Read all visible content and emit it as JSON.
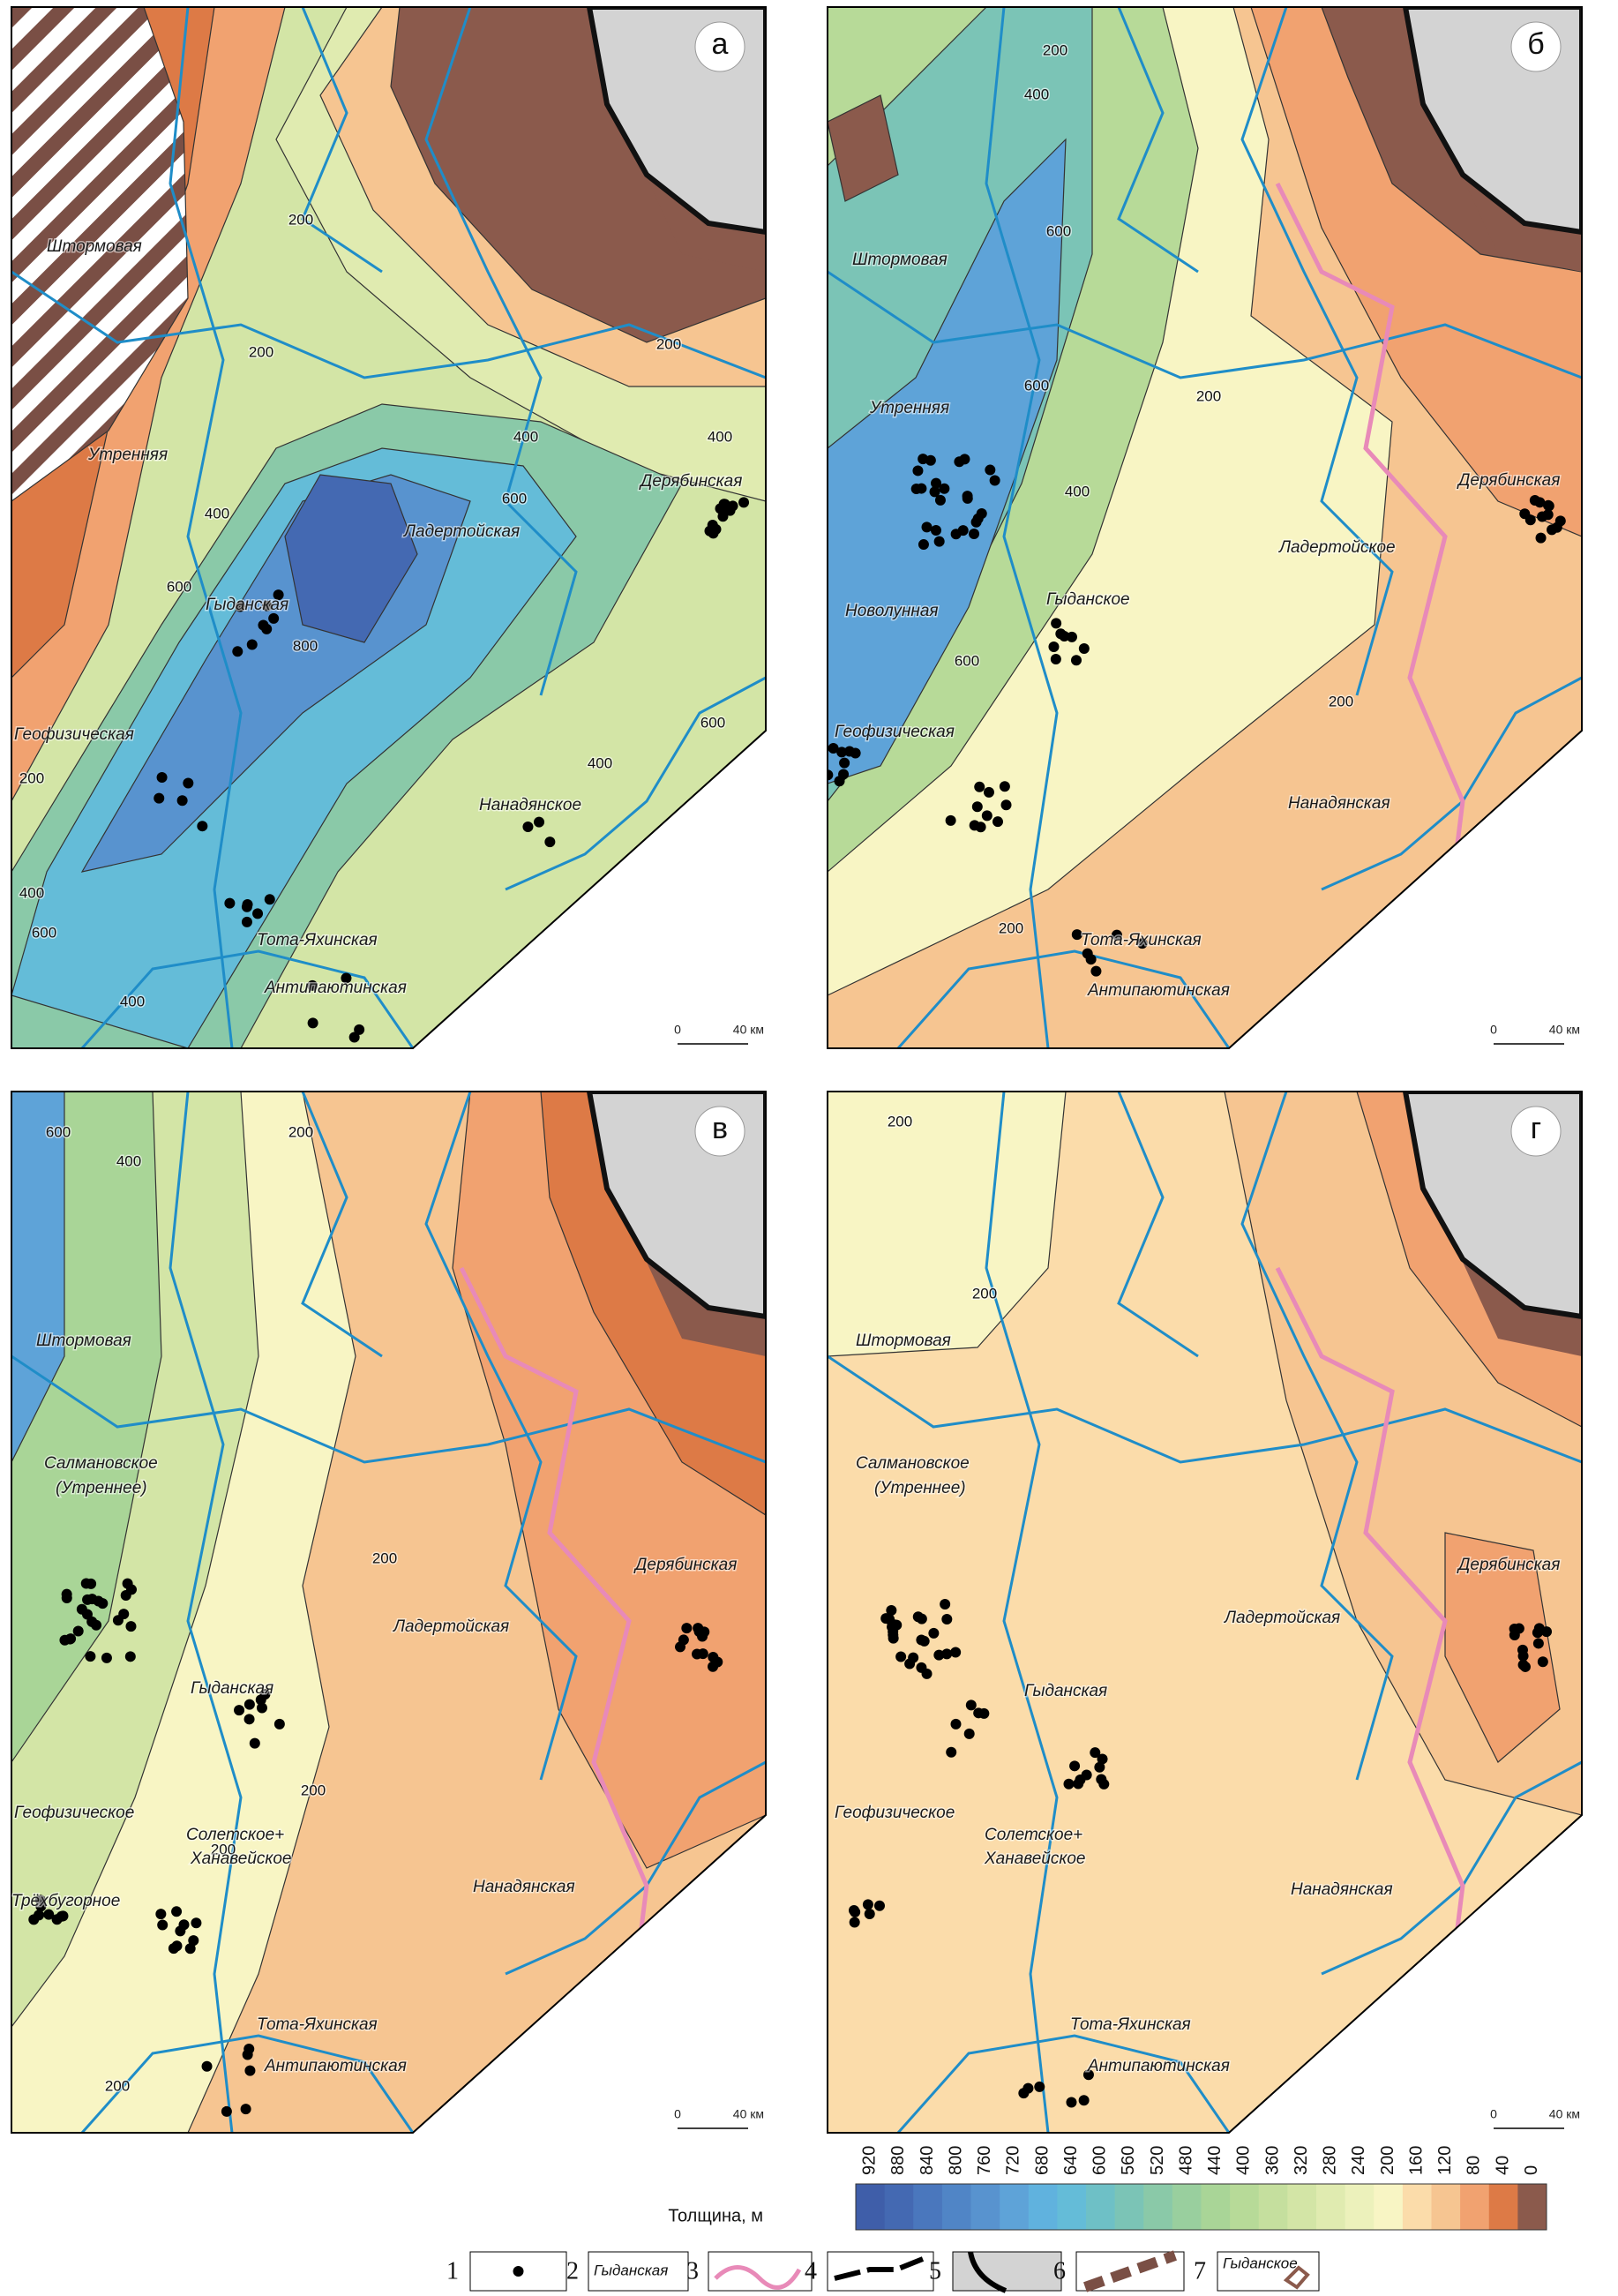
{
  "panels": [
    {
      "letter": "а",
      "labels": [
        "Штормовая",
        "Утренняя",
        "Дерябинская",
        "Ладертойская",
        "Гыданская",
        "Геофизическая",
        "Нанадянское",
        "Тота-Яхинская",
        "Антипаютинская"
      ],
      "contour_labels": [
        200,
        200,
        200,
        400,
        400,
        600,
        400,
        600,
        800,
        600,
        400,
        200,
        400,
        600,
        400
      ]
    },
    {
      "letter": "б",
      "labels": [
        "Штормовая",
        "Утренняя",
        "Новолунная",
        "Геофизическая",
        "Гыданское",
        "Ладертойское",
        "Дерябинская",
        "Нанадянская",
        "Тота-Яхинская",
        "Антипаютинская"
      ],
      "contour_labels": [
        600,
        400,
        200,
        600,
        400,
        600,
        200,
        200,
        200
      ]
    },
    {
      "letter": "в",
      "labels": [
        "Штормовая",
        "Салмановское",
        "(Утреннее)",
        "Дерябинская",
        "Ладертойская",
        "Гыданская",
        "Геофизическое",
        "Солетское+",
        "Ханавейское",
        "Трёхбугорное",
        "Нанадянская",
        "Тота-Яхинская",
        "Антипаютинская"
      ],
      "contour_labels": [
        600,
        400,
        200,
        200,
        200,
        200,
        200
      ]
    },
    {
      "letter": "г",
      "labels": [
        "Штормовая",
        "Салмановское",
        "(Утреннее)",
        "Дерябинская",
        "Ладертойская",
        "Гыданская",
        "Геофизическое",
        "Солетское+",
        "Ханавейское",
        "Нанадянская",
        "Тота-Яхинская",
        "Антипаютинская"
      ],
      "contour_labels": [
        200,
        200
      ]
    }
  ],
  "scale": {
    "start": 0,
    "end": "40 км"
  },
  "colorbar": {
    "title": "Толщина, м",
    "ticks": [
      920,
      880,
      840,
      800,
      760,
      720,
      680,
      640,
      600,
      560,
      520,
      480,
      440,
      400,
      360,
      320,
      280,
      240,
      200,
      160,
      120,
      80,
      40,
      0
    ],
    "colors": [
      "#3f5ea9",
      "#4469b2",
      "#4a77bd",
      "#5085c6",
      "#5893cf",
      "#5ea3d8",
      "#60b2de",
      "#64bcd8",
      "#6ec0c6",
      "#7bc4b6",
      "#8ac9a8",
      "#99cf9e",
      "#a9d597",
      "#b7da98",
      "#c5df9e",
      "#d3e5a6",
      "#e0ebb0",
      "#ecf1bb",
      "#f8f5c4",
      "#fbdcaa",
      "#f6c591",
      "#f1a270",
      "#dd7a46",
      "#8b5a4c"
    ]
  },
  "legend": [
    {
      "number": 1
    },
    {
      "number": 2,
      "text": "Гыданская"
    },
    {
      "number": 3
    },
    {
      "number": 4
    },
    {
      "number": 5
    },
    {
      "number": 6
    },
    {
      "number": 7,
      "text": "Гыданское"
    }
  ]
}
